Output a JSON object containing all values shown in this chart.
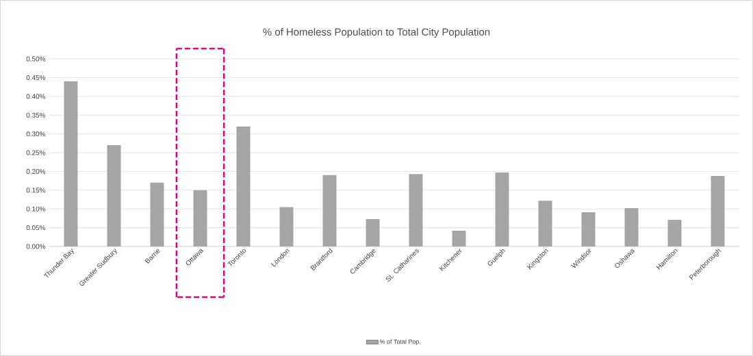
{
  "chart_data": {
    "type": "bar",
    "title": "% of Homeless Population to Total City Population",
    "categories": [
      "Thunder Bay",
      "Greater Sudbury",
      "Barrie",
      "Ottawa",
      "Toronto",
      "London",
      "Brantford",
      "Cambridge",
      "St. Catharines",
      "Kitchener",
      "Guelph",
      "Kingston",
      "Windsor",
      "Oshawa",
      "Hamilton",
      "Peterborough"
    ],
    "series": [
      {
        "name": "% of Total Pop.",
        "color": "#a5a5a5",
        "values": [
          0.44,
          0.27,
          0.17,
          0.15,
          0.32,
          0.105,
          0.19,
          0.073,
          0.193,
          0.042,
          0.197,
          0.122,
          0.091,
          0.102,
          0.071,
          0.188
        ]
      }
    ],
    "ylim": [
      0,
      0.5
    ],
    "yticks": [
      {
        "value": 0,
        "label": "0.00%"
      },
      {
        "value": 0.05,
        "label": "0.05%"
      },
      {
        "value": 0.1,
        "label": "0.10%"
      },
      {
        "value": 0.15,
        "label": "0.15%"
      },
      {
        "value": 0.2,
        "label": "0.20%"
      },
      {
        "value": 0.25,
        "label": "0.25%"
      },
      {
        "value": 0.3,
        "label": "0.30%"
      },
      {
        "value": 0.35,
        "label": "0.35%"
      },
      {
        "value": 0.4,
        "label": "0.40%"
      },
      {
        "value": 0.45,
        "label": "0.45%"
      },
      {
        "value": 0.5,
        "label": "0.50%"
      }
    ],
    "grid": "y",
    "legend": "bottom"
  }
}
